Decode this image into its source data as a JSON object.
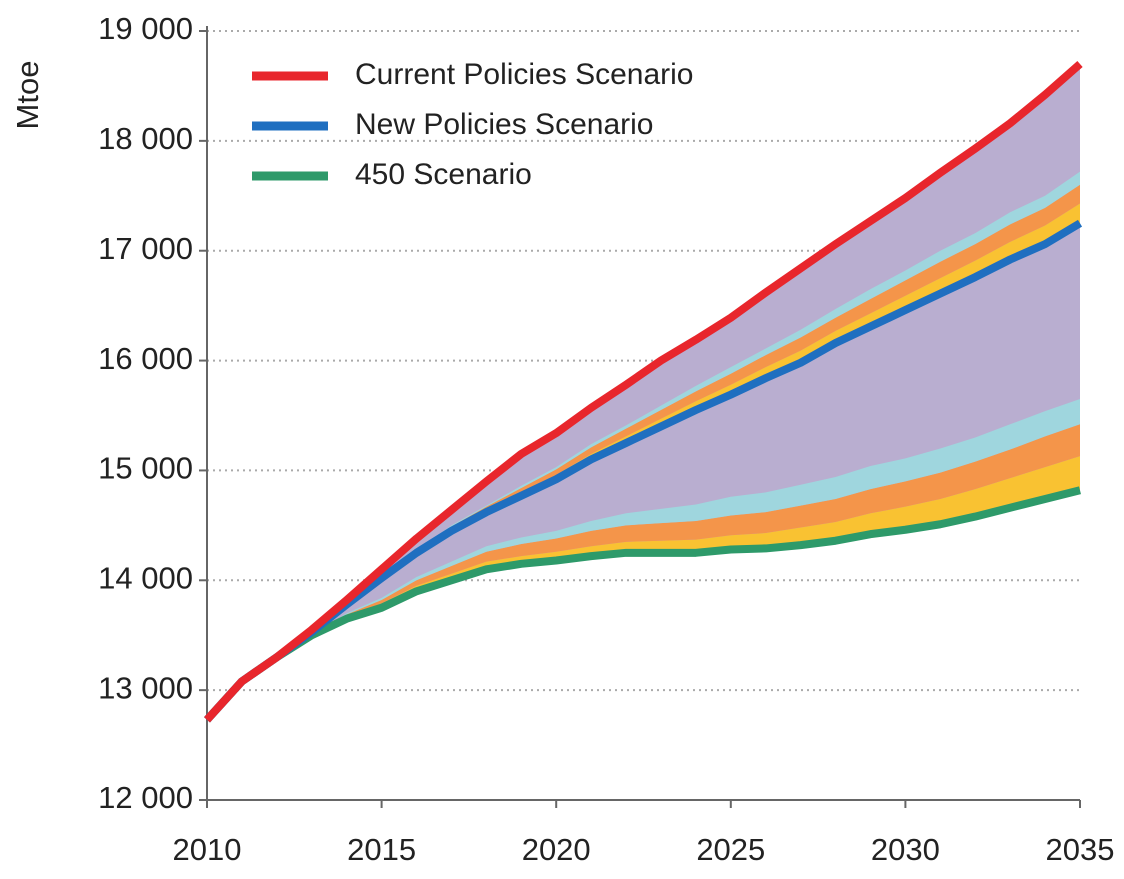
{
  "chart_data": {
    "type": "line",
    "ylabel": "Mtoe",
    "x": [
      2010,
      2011,
      2012,
      2013,
      2014,
      2015,
      2016,
      2017,
      2018,
      2019,
      2020,
      2021,
      2022,
      2023,
      2024,
      2025,
      2026,
      2027,
      2028,
      2029,
      2030,
      2031,
      2032,
      2033,
      2034,
      2035
    ],
    "xlim": [
      2010,
      2035
    ],
    "xticks": [
      2010,
      2015,
      2020,
      2025,
      2030,
      2035
    ],
    "ylim": [
      12000,
      19000
    ],
    "yticks": [
      {
        "value": 12000,
        "label": "12 000"
      },
      {
        "value": 13000,
        "label": "13 000"
      },
      {
        "value": 14000,
        "label": "14 000"
      },
      {
        "value": 15000,
        "label": "15 000"
      },
      {
        "value": 16000,
        "label": "16 000"
      },
      {
        "value": 17000,
        "label": "17 000"
      },
      {
        "value": 18000,
        "label": "18 000"
      },
      {
        "value": 19000,
        "label": "19 000"
      }
    ],
    "grid": true,
    "area_color": "#b9aed0",
    "series": [
      {
        "name": "Current Policies Scenario",
        "color": "#e8262c",
        "values": [
          12730,
          13080,
          13300,
          13550,
          13820,
          14100,
          14380,
          14640,
          14900,
          15150,
          15340,
          15570,
          15780,
          16000,
          16190,
          16390,
          16620,
          16840,
          17060,
          17270,
          17480,
          17710,
          17930,
          18160,
          18420,
          18700
        ]
      },
      {
        "name": "New Policies Scenario",
        "color": "#1f6fc0",
        "values": [
          12730,
          13080,
          13300,
          13530,
          13780,
          14020,
          14250,
          14450,
          14620,
          14770,
          14920,
          15100,
          15250,
          15400,
          15550,
          15690,
          15840,
          15980,
          16160,
          16310,
          16460,
          16610,
          16760,
          16920,
          17060,
          17250
        ],
        "bands": [
          {
            "color": "#f9c232",
            "values": [
              0,
              0,
              0,
              0,
              0,
              0,
              10,
              20,
              20,
              30,
              40,
              50,
              60,
              70,
              80,
              90,
              100,
              110,
              110,
              120,
              130,
              140,
              150,
              160,
              170,
              180
            ]
          },
          {
            "color": "#f4954a",
            "values": [
              0,
              0,
              0,
              0,
              0,
              0,
              10,
              20,
              30,
              40,
              50,
              60,
              70,
              80,
              90,
              100,
              110,
              120,
              120,
              130,
              140,
              150,
              150,
              160,
              160,
              170
            ]
          },
          {
            "color": "#9fd6de",
            "values": [
              0,
              0,
              0,
              0,
              0,
              0,
              0,
              10,
              10,
              20,
              20,
              30,
              30,
              40,
              50,
              60,
              60,
              70,
              80,
              90,
              90,
              100,
              100,
              110,
              110,
              120
            ]
          }
        ]
      },
      {
        "name": "450 Scenario",
        "color": "#2e9a6a",
        "values": [
          12730,
          13080,
          13300,
          13500,
          13650,
          13750,
          13900,
          14000,
          14100,
          14150,
          14180,
          14220,
          14250,
          14250,
          14250,
          14280,
          14290,
          14320,
          14360,
          14420,
          14460,
          14510,
          14580,
          14660,
          14740,
          14820
        ],
        "bands": [
          {
            "color": "#f9c232",
            "values": [
              0,
              0,
              0,
              0,
              20,
              40,
              50,
              60,
              70,
              70,
              80,
              90,
              100,
              110,
              120,
              130,
              140,
              160,
              170,
              190,
              210,
              230,
              250,
              270,
              290,
              310
            ]
          },
          {
            "color": "#f4954a",
            "values": [
              0,
              0,
              0,
              0,
              20,
              30,
              50,
              70,
              90,
              110,
              120,
              140,
              150,
              160,
              170,
              180,
              190,
              200,
              210,
              220,
              230,
              240,
              250,
              260,
              280,
              290
            ]
          },
          {
            "color": "#9fd6de",
            "values": [
              0,
              0,
              0,
              0,
              10,
              20,
              30,
              40,
              50,
              60,
              70,
              90,
              110,
              130,
              150,
              170,
              180,
              190,
              200,
              210,
              210,
              220,
              220,
              230,
              230,
              230
            ]
          }
        ]
      }
    ]
  }
}
